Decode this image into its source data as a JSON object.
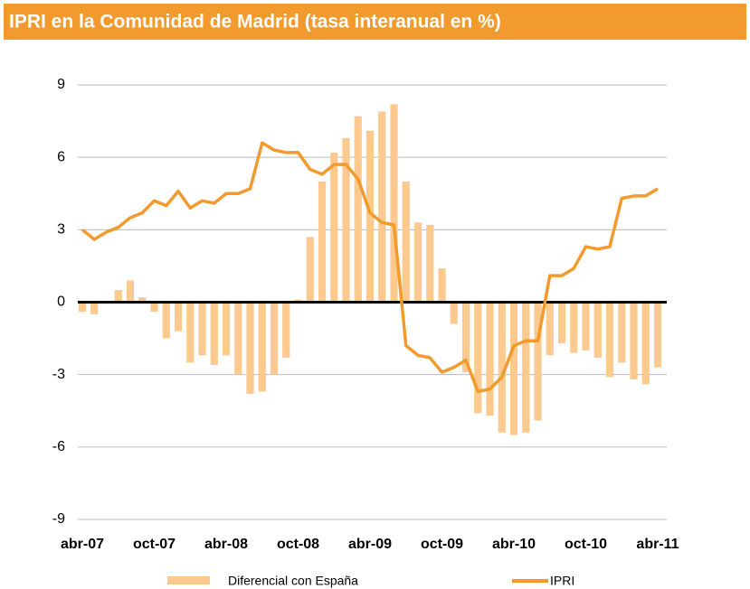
{
  "chart_data": {
    "type": "combo",
    "title": "IPRI en la Comunidad de Madrid (tasa interanual en %)",
    "categories": [
      "abr-07",
      null,
      null,
      null,
      null,
      null,
      "oct-07",
      null,
      null,
      null,
      null,
      null,
      "abr-08",
      null,
      null,
      null,
      null,
      null,
      "oct-08",
      null,
      null,
      null,
      null,
      null,
      "abr-09",
      null,
      null,
      null,
      null,
      null,
      "oct-09",
      null,
      null,
      null,
      null,
      null,
      "abr-10",
      null,
      null,
      null,
      null,
      null,
      "oct-10",
      null,
      null,
      null,
      null,
      null,
      "abr-11"
    ],
    "series": [
      {
        "name": "Diferencial con España",
        "type": "bar",
        "color": "#fcca8e",
        "values": [
          -0.4,
          -0.5,
          0,
          0.5,
          0.9,
          0.2,
          -0.4,
          -1.5,
          -1.2,
          -2.5,
          -2.2,
          -2.6,
          -2.2,
          -3.0,
          -3.8,
          -3.7,
          -3.0,
          -2.3,
          0.1,
          2.7,
          5.0,
          6.2,
          6.8,
          7.7,
          7.1,
          7.9,
          8.2,
          5.0,
          3.3,
          3.2,
          1.4,
          -0.9,
          -2.9,
          -4.6,
          -4.7,
          -5.4,
          -5.5,
          -5.4,
          -4.9,
          -2.2,
          -1.7,
          -2.1,
          -2.0,
          -2.3,
          -3.1,
          -2.5,
          -3.2,
          -3.4,
          -2.7
        ]
      },
      {
        "name": "IPRI",
        "type": "line",
        "color": "#f29a2e",
        "values": [
          3.0,
          2.6,
          2.9,
          3.1,
          3.5,
          3.7,
          4.2,
          4.0,
          4.6,
          3.9,
          4.2,
          4.1,
          4.5,
          4.5,
          4.7,
          6.6,
          6.3,
          6.2,
          6.2,
          5.5,
          5.3,
          5.7,
          5.7,
          5.1,
          3.7,
          3.3,
          3.2,
          -1.8,
          -2.2,
          -2.3,
          -2.9,
          -2.7,
          -2.4,
          -3.7,
          -3.6,
          -3.1,
          -1.8,
          -1.6,
          -1.6,
          1.1,
          1.1,
          1.4,
          2.3,
          2.2,
          2.3,
          4.3,
          4.4,
          4.4,
          4.7
        ]
      }
    ],
    "ylim": [
      -9,
      9
    ],
    "yticks": [
      -9,
      -6,
      -3,
      0,
      3,
      6,
      9
    ],
    "grid": true
  }
}
